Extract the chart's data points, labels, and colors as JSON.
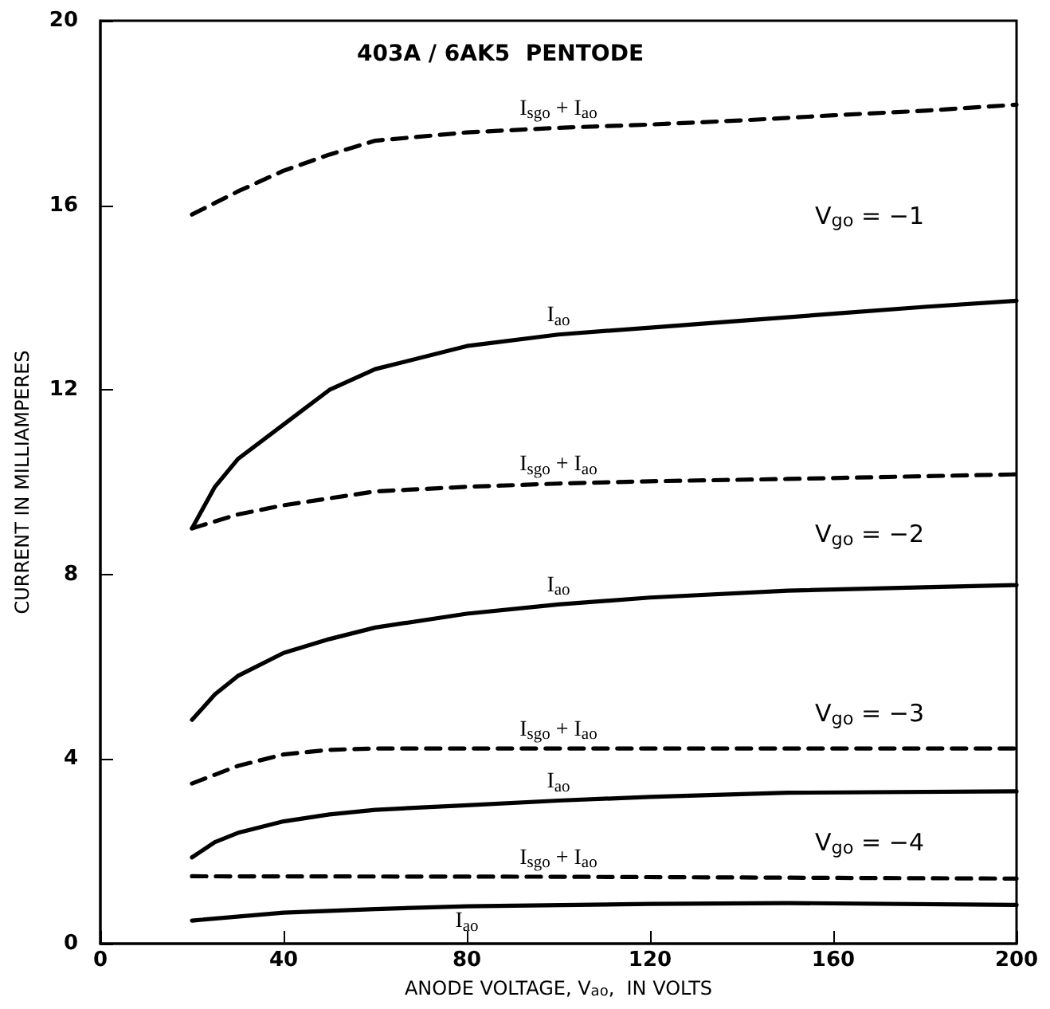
{
  "chart_data": {
    "type": "line",
    "title": "403A / 6AK5  PENTODE",
    "xlabel": "ANODE VOLTAGE, V$_{ao}$,  IN VOLTS",
    "ylabel": "CURRENT IN MILLIAMPERES",
    "xlim": [
      0,
      200
    ],
    "xticks": [
      0,
      40,
      80,
      120,
      160,
      200
    ],
    "ylim": [
      0,
      20
    ],
    "yticks": [
      0,
      4,
      8,
      12,
      16,
      20
    ],
    "grid": false,
    "legend": false,
    "marker": "none",
    "series": [
      {
        "name": "I$_{sgo}$ + I$_{ao}$",
        "color": "#000000",
        "line_style": "dashed",
        "x": [
          20,
          30,
          40,
          50,
          60,
          80,
          100,
          120,
          140,
          160,
          180,
          200
        ],
        "values": [
          15.8,
          16.3,
          16.75,
          17.1,
          17.4,
          17.58,
          17.68,
          17.75,
          17.84,
          17.95,
          18.05,
          18.18
        ]
      },
      {
        "name": "I$_{ao}$",
        "color": "#000000",
        "line_style": "solid",
        "x": [
          20,
          25,
          30,
          40,
          50,
          60,
          80,
          100,
          120,
          140,
          160,
          180,
          200
        ],
        "values": [
          9.0,
          9.9,
          10.5,
          11.25,
          12.0,
          12.45,
          12.95,
          13.2,
          13.35,
          13.5,
          13.65,
          13.8,
          13.93
        ]
      },
      {
        "name": "I$_{sgo}$ + I$_{ao}$",
        "color": "#000000",
        "line_style": "dashed",
        "x": [
          20,
          30,
          40,
          60,
          80,
          100,
          120,
          150,
          200
        ],
        "values": [
          9.0,
          9.3,
          9.5,
          9.8,
          9.9,
          9.97,
          10.02,
          10.07,
          10.17
        ]
      },
      {
        "name": "I$_{ao}$",
        "color": "#000000",
        "line_style": "solid",
        "x": [
          20,
          25,
          30,
          40,
          50,
          60,
          80,
          100,
          120,
          150,
          200
        ],
        "values": [
          4.85,
          5.4,
          5.8,
          6.3,
          6.6,
          6.85,
          7.15,
          7.35,
          7.5,
          7.65,
          7.77
        ]
      },
      {
        "name": "I$_{sgo}$ + I$_{ao}$",
        "color": "#000000",
        "line_style": "dashed",
        "x": [
          20,
          30,
          40,
          50,
          60,
          100,
          150,
          200
        ],
        "values": [
          3.47,
          3.85,
          4.1,
          4.2,
          4.23,
          4.23,
          4.23,
          4.23
        ]
      },
      {
        "name": "I$_{ao}$",
        "color": "#000000",
        "line_style": "solid",
        "x": [
          20,
          25,
          30,
          40,
          50,
          60,
          80,
          100,
          120,
          150,
          200
        ],
        "values": [
          1.87,
          2.2,
          2.4,
          2.65,
          2.8,
          2.9,
          3.0,
          3.1,
          3.18,
          3.27,
          3.3
        ]
      },
      {
        "name": "I$_{sgo}$ + I$_{ao}$",
        "color": "#000000",
        "line_style": "dashed",
        "x": [
          20,
          100,
          150,
          200
        ],
        "values": [
          1.46,
          1.45,
          1.43,
          1.41
        ]
      },
      {
        "name": "I$_{ao}$",
        "color": "#000000",
        "line_style": "solid",
        "x": [
          20,
          40,
          60,
          80,
          120,
          150,
          200
        ],
        "values": [
          0.5,
          0.67,
          0.75,
          0.81,
          0.86,
          0.88,
          0.84
        ]
      }
    ],
    "annotations": [
      "V$_{go}$ = −1",
      "V$_{go}$ = −2",
      "V$_{go}$ = −3",
      "V$_{go}$ = −4"
    ]
  }
}
